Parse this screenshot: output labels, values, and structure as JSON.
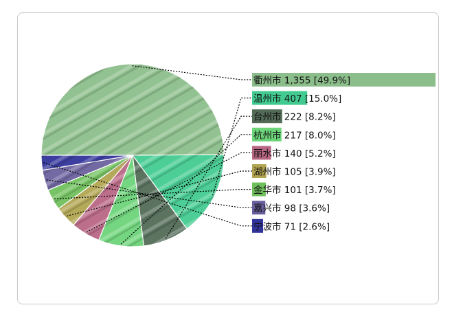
{
  "chart_data": {
    "type": "pie",
    "title": "",
    "legend_position": "right",
    "labels": [
      "衢州市",
      "温州市",
      "台州市",
      "杭州市",
      "丽水市",
      "湖州市",
      "金华市",
      "嘉兴市",
      "宁波市"
    ],
    "values": [
      1355,
      407,
      222,
      217,
      140,
      105,
      101,
      98,
      71
    ],
    "value_labels": [
      "1,355",
      "407",
      "222",
      "217",
      "140",
      "105",
      "101",
      "98",
      "71"
    ],
    "percent_labels": [
      "[49.9%]",
      "[15.0%]",
      "[8.2%]",
      "[8.0%]",
      "[5.2%]",
      "[3.9%]",
      "[3.7%]",
      "[3.6%]",
      "[2.6%]"
    ],
    "colors": [
      "#7fb77e",
      "#2ec584",
      "#3f5a44",
      "#5ccf6a",
      "#b05575",
      "#a89a3d",
      "#5fb84a",
      "#5a4f93",
      "#1a1d8f"
    ]
  }
}
